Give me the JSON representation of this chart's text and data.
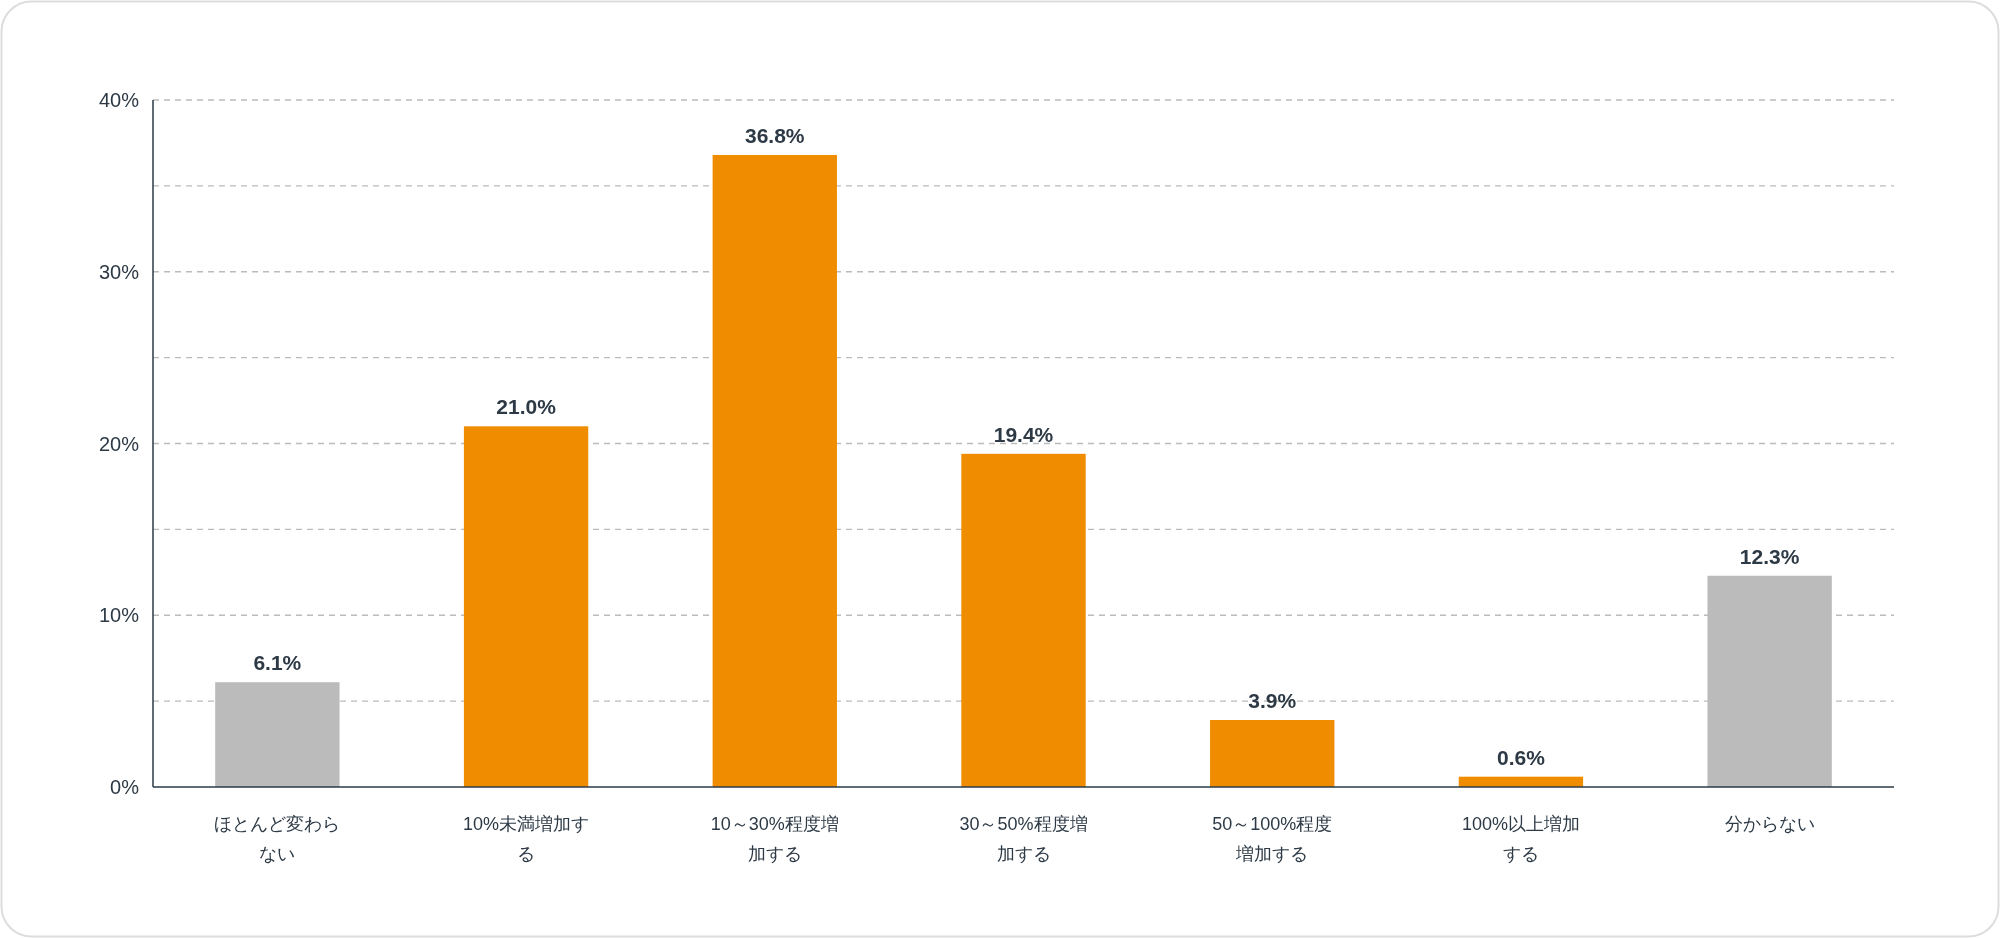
{
  "chart_data": {
    "type": "bar",
    "categories": [
      "ほとんど変わらない",
      "10%未満増加する",
      "10～30%程度増加する",
      "30～50%程度増加する",
      "50～100%程度増加する",
      "100%以上増加する",
      "分からない"
    ],
    "values": [
      6.1,
      21.0,
      36.8,
      19.4,
      3.9,
      0.6,
      12.3
    ],
    "colors": [
      "#bbbbbb",
      "#f08c00",
      "#f08c00",
      "#f08c00",
      "#f08c00",
      "#f08c00",
      "#bbbbbb"
    ],
    "value_labels": [
      "6.1%",
      "21.0%",
      "36.8%",
      "19.4%",
      "3.9%",
      "0.6%",
      "12.3%"
    ],
    "ylim": [
      0,
      40
    ],
    "yticks": [
      {
        "value": 0,
        "label": "0%"
      },
      {
        "value": 5,
        "label": null
      },
      {
        "value": 10,
        "label": "10%"
      },
      {
        "value": 15,
        "label": null
      },
      {
        "value": 20,
        "label": "20%"
      },
      {
        "value": 25,
        "label": null
      },
      {
        "value": 30,
        "label": "30%"
      },
      {
        "value": 35,
        "label": null
      },
      {
        "value": 40,
        "label": "40%"
      }
    ],
    "grid": "y",
    "line_style": "dashed"
  }
}
